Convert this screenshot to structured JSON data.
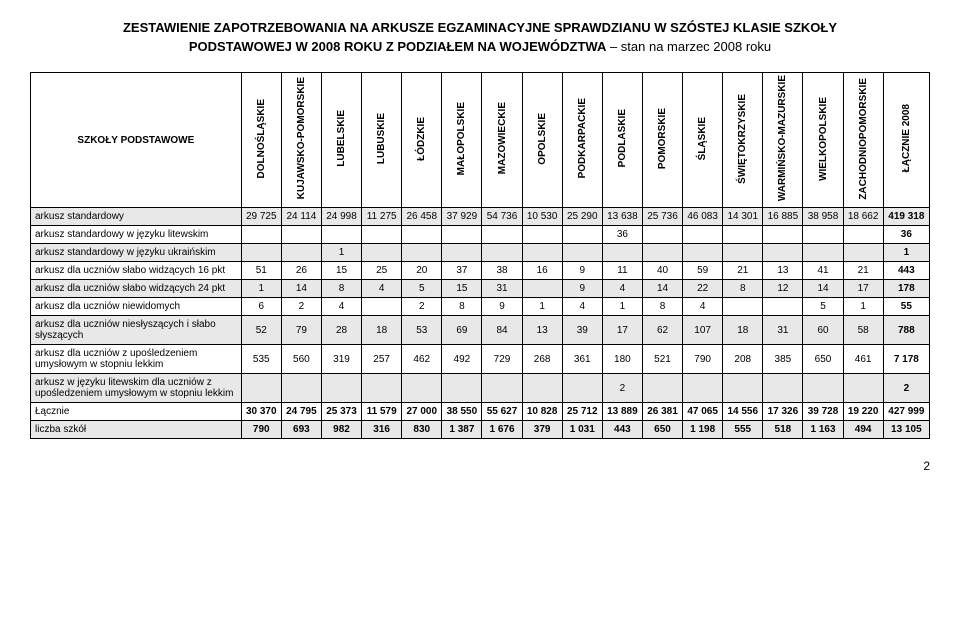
{
  "title": "ZESTAWIENIE ZAPOTRZEBOWANIA NA ARKUSZE EGZAMINACYJNE SPRAWDZIANU W SZÓSTEJ KLASIE SZKOŁY",
  "subtitle_bold": "PODSTAWOWEJ W 2008 ROKU Z PODZIAŁEM NA WOJEWÓDZTWA",
  "subtitle_note": " – stan na marzec 2008 roku",
  "corner": "SZKOŁY PODSTAWOWE",
  "columns": [
    "DOLNOŚLĄSKIE",
    "KUJAWSKO-POMORSKIE",
    "LUBELSKIE",
    "LUBUSKIE",
    "ŁÓDZKIE",
    "MAŁOPOLSKIE",
    "MAZOWIECKIE",
    "OPOLSKIE",
    "PODKARPACKIE",
    "PODLASKIE",
    "POMORSKIE",
    "ŚLĄSKIE",
    "ŚWIĘTOKRZYSKIE",
    "WARMIŃSKO-MAZURSKIE",
    "WIELKOPOLSKIE",
    "ZACHODNIOPOMORSKIE",
    "ŁĄCZNIE 2008"
  ],
  "rows": [
    {
      "label": "arkusz standardowy",
      "shade": true,
      "cells": [
        "29 725",
        "24 114",
        "24 998",
        "11 275",
        "26 458",
        "37 929",
        "54 736",
        "10 530",
        "25 290",
        "13 638",
        "25 736",
        "46 083",
        "14 301",
        "16 885",
        "38 958",
        "18 662",
        "419 318"
      ]
    },
    {
      "label": "arkusz standardowy w języku litewskim",
      "shade": false,
      "cells": [
        "",
        "",
        "",
        "",
        "",
        "",
        "",
        "",
        "",
        "36",
        "",
        "",
        "",
        "",
        "",
        "",
        "36"
      ]
    },
    {
      "label": "arkusz standardowy w języku ukraińskim",
      "shade": true,
      "cells": [
        "",
        "",
        "1",
        "",
        "",
        "",
        "",
        "",
        "",
        "",
        "",
        "",
        "",
        "",
        "",
        "",
        "1"
      ]
    },
    {
      "label": "arkusz dla uczniów słabo widzących 16 pkt",
      "shade": false,
      "cells": [
        "51",
        "26",
        "15",
        "25",
        "20",
        "37",
        "38",
        "16",
        "9",
        "11",
        "40",
        "59",
        "21",
        "13",
        "41",
        "21",
        "443"
      ]
    },
    {
      "label": "arkusz dla uczniów słabo widzących 24 pkt",
      "shade": true,
      "cells": [
        "1",
        "14",
        "8",
        "4",
        "5",
        "15",
        "31",
        "",
        "9",
        "4",
        "14",
        "22",
        "8",
        "12",
        "14",
        "17",
        "178"
      ]
    },
    {
      "label": "arkusz dla uczniów niewidomych",
      "shade": false,
      "cells": [
        "6",
        "2",
        "4",
        "",
        "2",
        "8",
        "9",
        "1",
        "4",
        "1",
        "8",
        "4",
        "",
        "",
        "5",
        "1",
        "55"
      ]
    },
    {
      "label": "arkusz dla uczniów niesłyszących i słabo słyszących",
      "shade": true,
      "cells": [
        "52",
        "79",
        "28",
        "18",
        "53",
        "69",
        "84",
        "13",
        "39",
        "17",
        "62",
        "107",
        "18",
        "31",
        "60",
        "58",
        "788"
      ]
    },
    {
      "label": "arkusz dla uczniów z upośledzeniem umysłowym w stopniu lekkim",
      "shade": false,
      "cells": [
        "535",
        "560",
        "319",
        "257",
        "462",
        "492",
        "729",
        "268",
        "361",
        "180",
        "521",
        "790",
        "208",
        "385",
        "650",
        "461",
        "7 178"
      ]
    },
    {
      "label": "arkusz w języku litewskim dla uczniów z upośledzeniem umysłowym w stopniu lekkim",
      "shade": true,
      "cells": [
        "",
        "",
        "",
        "",
        "",
        "",
        "",
        "",
        "",
        "2",
        "",
        "",
        "",
        "",
        "",
        "",
        "2"
      ]
    },
    {
      "label": "Łącznie",
      "shade": false,
      "bold": true,
      "cells": [
        "30 370",
        "24 795",
        "25 373",
        "11 579",
        "27 000",
        "38 550",
        "55 627",
        "10 828",
        "25 712",
        "13 889",
        "26 381",
        "47 065",
        "14 556",
        "17 326",
        "39 728",
        "19 220",
        "427 999"
      ]
    },
    {
      "label": "liczba szkół",
      "shade": true,
      "bold": true,
      "cells": [
        "790",
        "693",
        "982",
        "316",
        "830",
        "1 387",
        "1 676",
        "379",
        "1 031",
        "443",
        "650",
        "1 198",
        "555",
        "518",
        "1 163",
        "494",
        "13 105"
      ]
    }
  ],
  "pagenum": "2"
}
